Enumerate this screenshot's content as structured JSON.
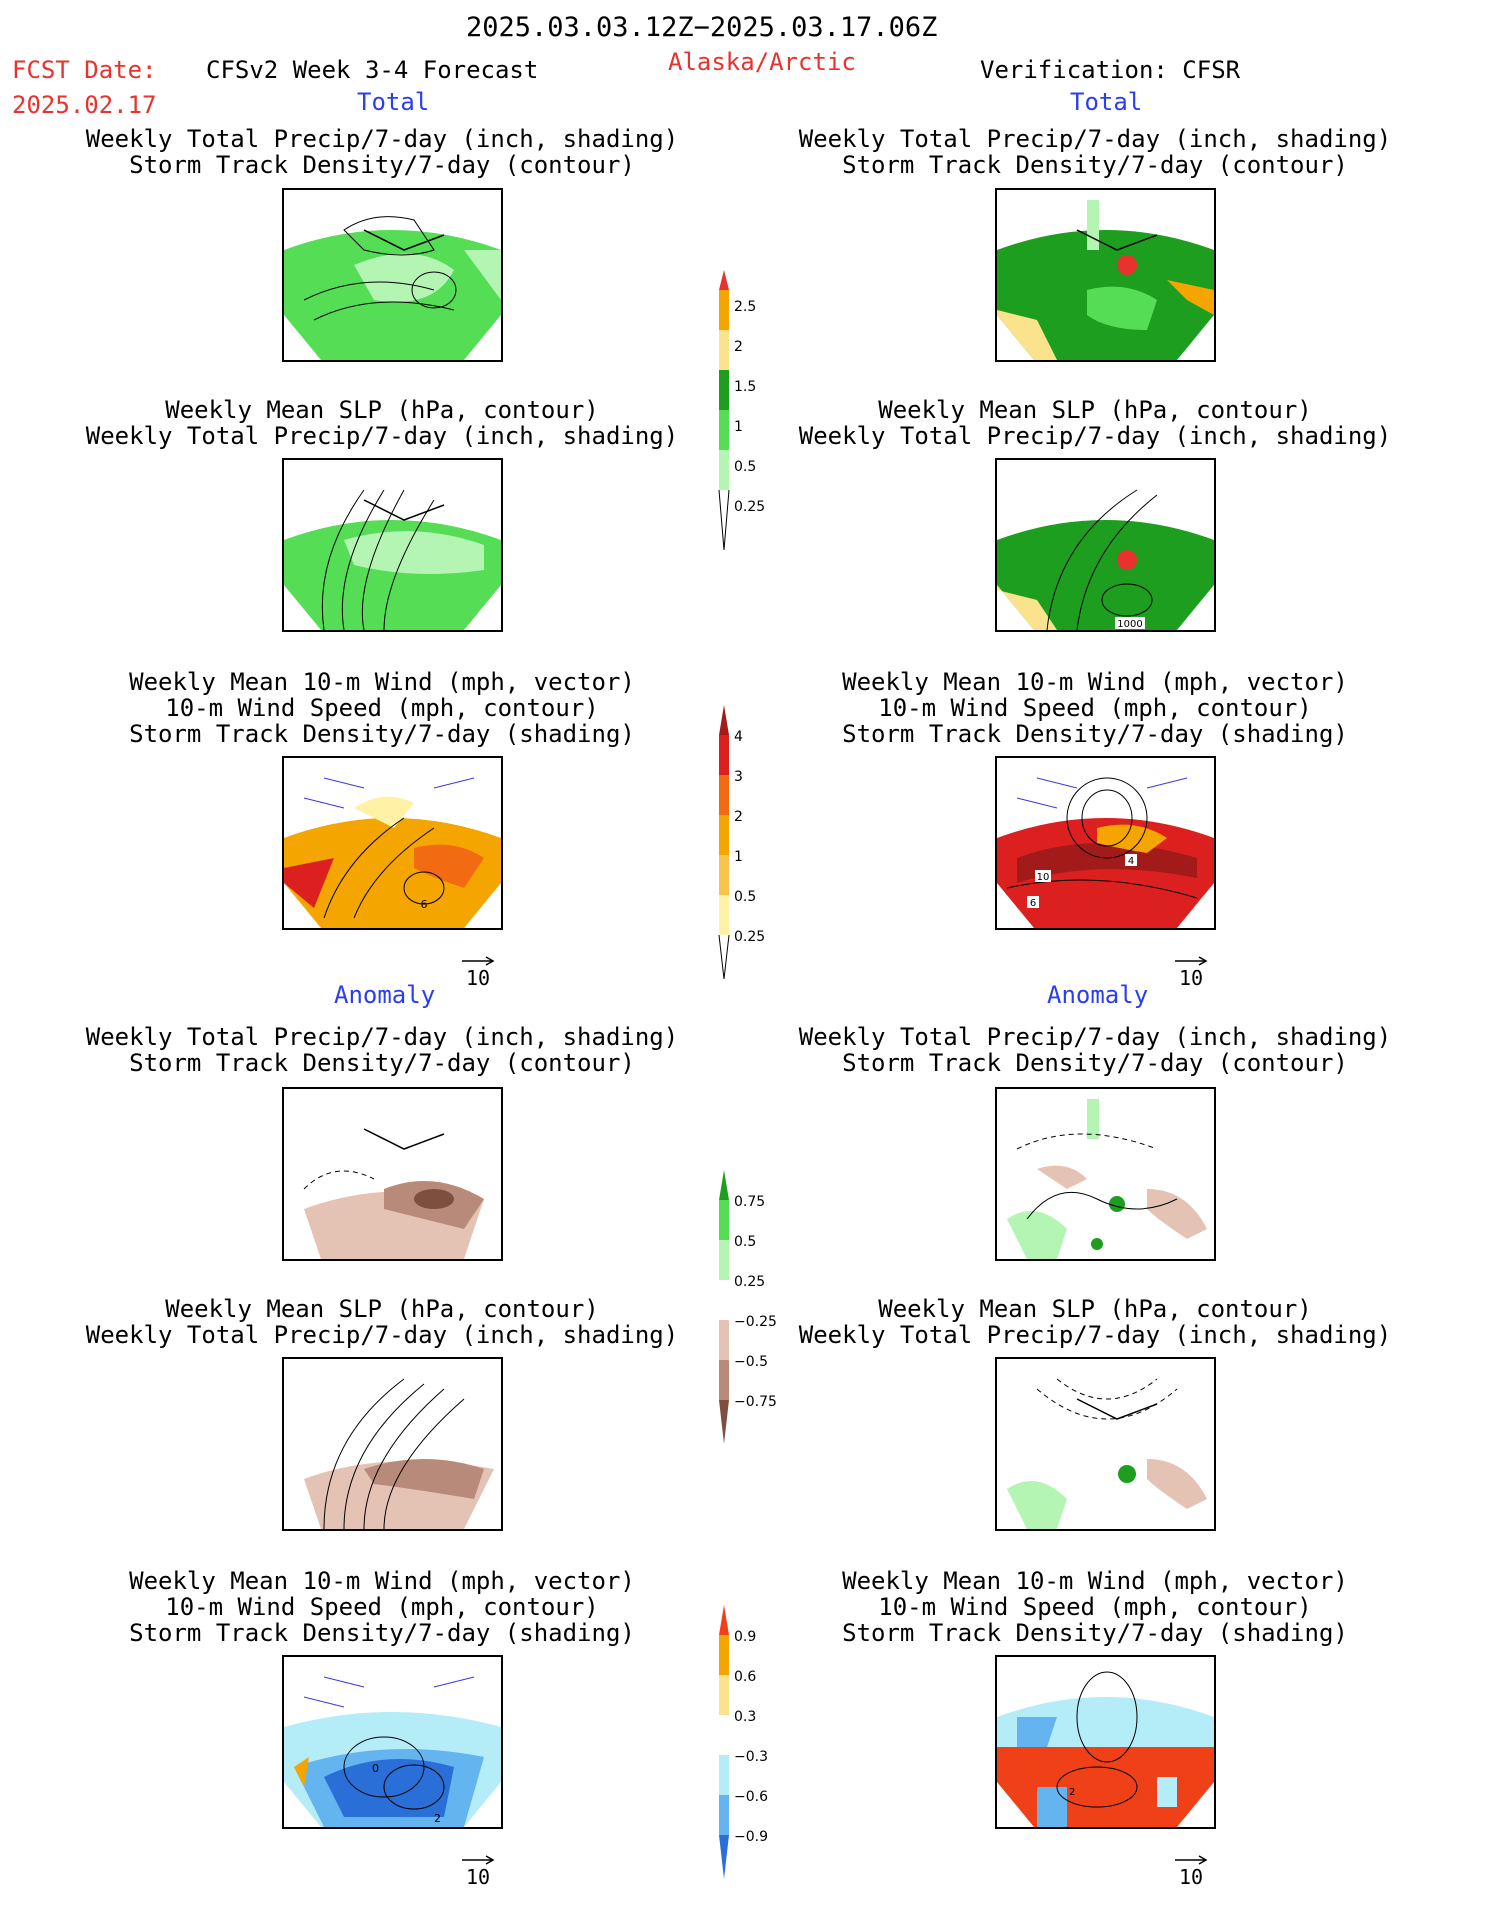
{
  "header": {
    "date_range": "2025.03.03.12Z−2025.03.17.06Z",
    "fcst_label": "FCST Date:",
    "fcst_date": "2025.02.17",
    "model_title": "CFSv2 Week 3-4 Forecast",
    "region": "Alaska/Arctic",
    "verification": "Verification: CFSR"
  },
  "sections": {
    "total": "Total",
    "anomaly": "Anomaly"
  },
  "panel_titles": {
    "precip_storm": [
      "Weekly Total Precip/7-day (inch, shading)",
      "Storm Track Density/7-day (contour)"
    ],
    "slp_precip": [
      "Weekly Mean SLP (hPa, contour)",
      "Weekly Total Precip/7-day (inch, shading)"
    ],
    "wind_storm": [
      "Weekly Mean 10-m Wind (mph, vector)",
      "10-m Wind Speed (mph, contour)",
      "Storm Track Density/7-day (shading)"
    ]
  },
  "vector_reference": "10",
  "contour_labels": {
    "slp_obs": "1000",
    "wind_fc_total": "6",
    "wind_obs_total": [
      "10",
      "4",
      "6"
    ],
    "wind_fc_anom": [
      "0",
      "2"
    ],
    "wind_obs_anom": "2"
  },
  "colorbars": {
    "precip_total": {
      "labels": [
        "2.5",
        "2",
        "1.5",
        "1",
        "0.5",
        "0.25"
      ],
      "colors": [
        "#e8322e",
        "#f5a500",
        "#fae38c",
        "#1e9e1e",
        "#55dd55",
        "#b4f5b4"
      ]
    },
    "storm_total": {
      "labels": [
        "4",
        "3",
        "2",
        "1",
        "0.5",
        "0.25"
      ],
      "colors": [
        "#a31a1a",
        "#dc2020",
        "#f26a12",
        "#f5a500",
        "#f7c44e",
        "#fff2a6"
      ]
    },
    "precip_anom": {
      "labels": [
        "0.75",
        "0.5",
        "0.25",
        "−0.25",
        "−0.5",
        "−0.75"
      ],
      "colors": [
        "#1e9e1e",
        "#55dd55",
        "#b4f5b4",
        "#ffffff",
        "#e4c2b4",
        "#b88a7a",
        "#7e4e3e"
      ]
    },
    "storm_anom": {
      "labels": [
        "0.9",
        "0.6",
        "0.3",
        "−0.3",
        "−0.6",
        "−0.9"
      ],
      "colors": [
        "#f04018",
        "#f5a500",
        "#fae38c",
        "#ffffff",
        "#b4ecf7",
        "#64b4f0",
        "#2a6ed8"
      ]
    }
  },
  "colors": {
    "accent_red": "#e8322e",
    "accent_blue": "#2b3df0"
  }
}
